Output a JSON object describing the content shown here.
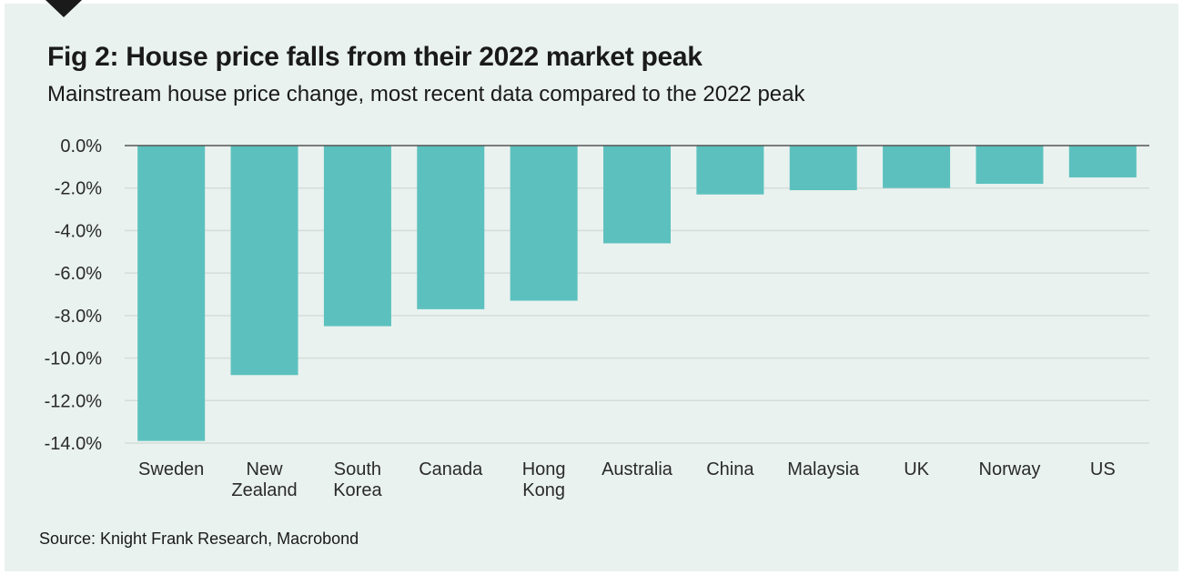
{
  "header": {
    "title": "Fig 2: House price falls from their 2022 market peak",
    "subtitle": "Mainstream house price change, most recent data compared to the 2022 peak"
  },
  "footer": {
    "source": "Source: Knight Frank Research, Macrobond"
  },
  "colors": {
    "bar": "#5cc1be",
    "background": "#e9f2ef",
    "grid": "#d6dcdb",
    "zero_line": "#555555"
  },
  "chart_data": {
    "type": "bar",
    "title": "Fig 2: House price falls from their 2022 market peak",
    "subtitle": "Mainstream house price change, most recent data compared to the 2022 peak",
    "xlabel": "",
    "ylabel": "",
    "categories": [
      [
        "Sweden"
      ],
      [
        "New",
        "Zealand"
      ],
      [
        "South",
        "Korea"
      ],
      [
        "Canada"
      ],
      [
        "Hong",
        "Kong"
      ],
      [
        "Australia"
      ],
      [
        "China"
      ],
      [
        "Malaysia"
      ],
      [
        "UK"
      ],
      [
        "Norway"
      ],
      [
        "US"
      ]
    ],
    "values": [
      -13.9,
      -10.8,
      -8.5,
      -7.7,
      -7.3,
      -4.6,
      -2.3,
      -2.1,
      -2.0,
      -1.8,
      -1.5
    ],
    "unit": "%",
    "ylim": [
      -14,
      0
    ],
    "yticks": [
      0,
      -2,
      -4,
      -6,
      -8,
      -10,
      -12,
      -14
    ],
    "ytick_labels": [
      "0.0%",
      "-2.0%",
      "-4.0%",
      "-6.0%",
      "-8.0%",
      "-10.0%",
      "-12.0%",
      "-14.0%"
    ],
    "grid": true,
    "legend": "none"
  }
}
